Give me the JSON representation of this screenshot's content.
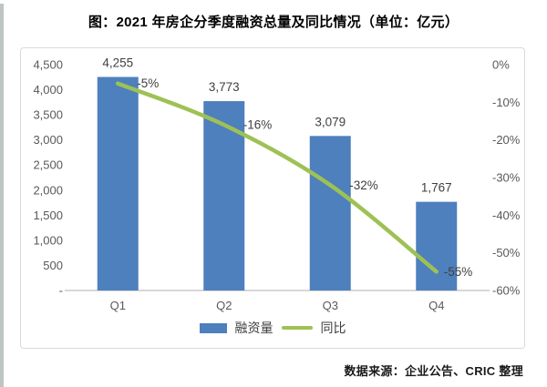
{
  "page": {
    "title": "图：2021 年房企分季度融资总量及同比情况（单位：亿元）",
    "source": "数据来源：企业公告、CRIC 整理"
  },
  "colors": {
    "bar": "#4e80bd",
    "line": "#9ec155",
    "axis_text": "#595959",
    "data_label_text": "#3f3f3f",
    "axis_line": "#bfbfbf",
    "chart_border": "#d9d9d9"
  },
  "chart_data": {
    "type": "bar+line combo",
    "title": "图：2021 年房企分季度融资总量及同比情况（单位：亿元）",
    "categories": [
      "Q1",
      "Q2",
      "Q3",
      "Q4"
    ],
    "series": [
      {
        "name": "融资量",
        "type": "bar",
        "axis": "left",
        "values": [
          4255,
          3773,
          3079,
          1767
        ],
        "labels": [
          "4,255",
          "3,773",
          "3,079",
          "1,767"
        ]
      },
      {
        "name": "同比",
        "type": "line",
        "axis": "right",
        "values": [
          -5,
          -16,
          -32,
          -55
        ],
        "labels": [
          "-5%",
          "-16%",
          "-32%",
          "-55%"
        ]
      }
    ],
    "left_axis": {
      "min": 0,
      "max": 4500,
      "step": 500,
      "tick_labels": [
        "4,500",
        "4,000",
        "3,500",
        "3,000",
        "2,500",
        "2,000",
        "1,500",
        "1,000",
        "500",
        "-"
      ]
    },
    "right_axis": {
      "min": -60,
      "max": 0,
      "step": 10,
      "tick_labels": [
        "0%",
        "-10%",
        "-20%",
        "-30%",
        "-40%",
        "-50%",
        "-60%"
      ]
    },
    "legend_position": "bottom",
    "grid": false
  }
}
